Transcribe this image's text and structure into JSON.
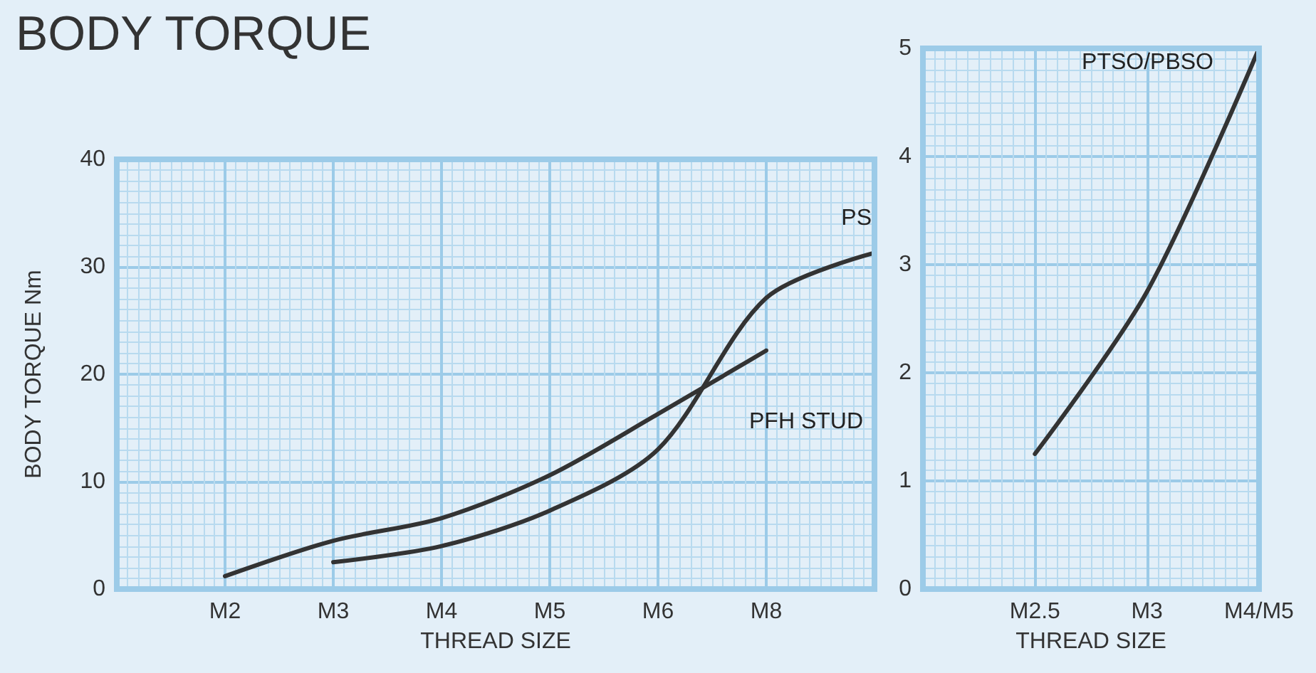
{
  "chart_data": [
    {
      "type": "line",
      "title": "BODY TORQUE",
      "xlabel": "THREAD SIZE",
      "ylabel": "BODY TORQUE Nm",
      "categories": [
        null,
        "M2",
        "M3",
        "M4",
        "M5",
        "M6",
        "M8",
        null
      ],
      "ylim": [
        0,
        40
      ],
      "yticks": [
        0,
        10,
        20,
        30,
        40
      ],
      "grid": true,
      "legend": false,
      "marker": "none",
      "line_style": "solid",
      "series": [
        {
          "name": "PS",
          "color": "#333333",
          "values": [
            null,
            null,
            2.5,
            4.0,
            7.3,
            13,
            27.1,
            31.3
          ]
        },
        {
          "name": "PFH STUD",
          "color": "#333333",
          "values": [
            null,
            1.2,
            4.5,
            6.6,
            10.6,
            16.3,
            22.2,
            null
          ]
        }
      ]
    },
    {
      "type": "line",
      "xlabel": "THREAD SIZE",
      "categories": [
        null,
        "M2.5",
        "M3",
        "M4/M5"
      ],
      "ylim": [
        0,
        5
      ],
      "yticks": [
        0,
        1,
        2,
        3,
        4,
        5
      ],
      "grid": true,
      "legend": false,
      "marker": "none",
      "line_style": "solid",
      "series": [
        {
          "name": "PTSO/PBSO",
          "color": "#333333",
          "values": [
            null,
            1.25,
            2.75,
            5.0
          ]
        }
      ]
    }
  ]
}
